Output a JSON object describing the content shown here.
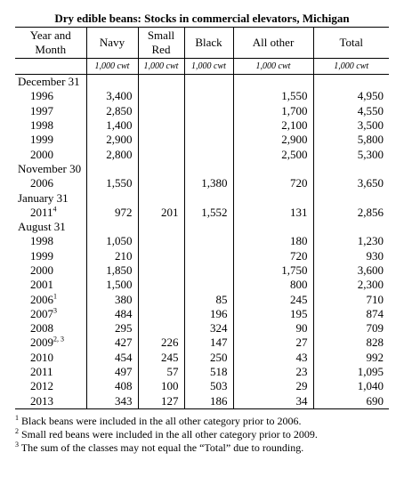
{
  "title": "Dry edible beans: Stocks in commercial elevators, Michigan",
  "columns": [
    {
      "name": "year",
      "label_lines": [
        "Year and",
        "Month"
      ]
    },
    {
      "name": "navy",
      "label_lines": [
        "Navy"
      ]
    },
    {
      "name": "small-red",
      "label_lines": [
        "Small",
        "Red"
      ]
    },
    {
      "name": "black",
      "label_lines": [
        "Black"
      ]
    },
    {
      "name": "all-other",
      "label_lines": [
        "All other"
      ]
    },
    {
      "name": "total",
      "label_lines": [
        "Total"
      ]
    }
  ],
  "units": [
    "1,000 cwt",
    "1,000 cwt",
    "1,000 cwt",
    "1,000 cwt",
    "1,000 cwt"
  ],
  "rows": [
    {
      "type": "section",
      "label": "December 31"
    },
    {
      "type": "data",
      "label": "1996",
      "sup": "",
      "values": [
        "3,400",
        "",
        "",
        "1,550",
        "4,950"
      ]
    },
    {
      "type": "data",
      "label": "1997",
      "sup": "",
      "values": [
        "2,850",
        "",
        "",
        "1,700",
        "4,550"
      ]
    },
    {
      "type": "data",
      "label": "1998",
      "sup": "",
      "values": [
        "1,400",
        "",
        "",
        "2,100",
        "3,500"
      ]
    },
    {
      "type": "data",
      "label": "1999",
      "sup": "",
      "values": [
        "2,900",
        "",
        "",
        "2,900",
        "5,800"
      ]
    },
    {
      "type": "data",
      "label": "2000",
      "sup": "",
      "values": [
        "2,800",
        "",
        "",
        "2,500",
        "5,300"
      ]
    },
    {
      "type": "section",
      "label": "November 30"
    },
    {
      "type": "data",
      "label": "2006",
      "sup": "",
      "values": [
        "1,550",
        "",
        "1,380",
        "720",
        "3,650"
      ]
    },
    {
      "type": "section",
      "label": "January 31"
    },
    {
      "type": "data",
      "label": "2011",
      "sup": "4",
      "values": [
        "972",
        "201",
        "1,552",
        "131",
        "2,856"
      ]
    },
    {
      "type": "section",
      "label": "August 31"
    },
    {
      "type": "data",
      "label": "1998",
      "sup": "",
      "values": [
        "1,050",
        "",
        "",
        "180",
        "1,230"
      ]
    },
    {
      "type": "data",
      "label": "1999",
      "sup": "",
      "values": [
        "210",
        "",
        "",
        "720",
        "930"
      ]
    },
    {
      "type": "data",
      "label": "2000",
      "sup": "",
      "values": [
        "1,850",
        "",
        "",
        "1,750",
        "3,600"
      ]
    },
    {
      "type": "data",
      "label": "2001",
      "sup": "",
      "values": [
        "1,500",
        "",
        "",
        "800",
        "2,300"
      ]
    },
    {
      "type": "data",
      "label": "2006",
      "sup": "1",
      "values": [
        "380",
        "",
        "85",
        "245",
        "710"
      ]
    },
    {
      "type": "data",
      "label": "2007",
      "sup": "3",
      "values": [
        "484",
        "",
        "196",
        "195",
        "874"
      ]
    },
    {
      "type": "data",
      "label": "2008",
      "sup": "",
      "values": [
        "295",
        "",
        "324",
        "90",
        "709"
      ]
    },
    {
      "type": "data",
      "label": "2009",
      "sup": "2, 3",
      "values": [
        "427",
        "226",
        "147",
        "27",
        "828"
      ]
    },
    {
      "type": "data",
      "label": "2010",
      "sup": "",
      "values": [
        "454",
        "245",
        "250",
        "43",
        "992"
      ]
    },
    {
      "type": "data",
      "label": "2011",
      "sup": "",
      "values": [
        "497",
        "57",
        "518",
        "23",
        "1,095"
      ]
    },
    {
      "type": "data",
      "label": "2012",
      "sup": "",
      "values": [
        "408",
        "100",
        "503",
        "29",
        "1,040"
      ]
    },
    {
      "type": "data",
      "label": "2013",
      "sup": "",
      "values": [
        "343",
        "127",
        "186",
        "34",
        "690"
      ]
    }
  ],
  "footnotes": [
    {
      "mark": "1",
      "text": "Black beans were included in the all other category prior to 2006."
    },
    {
      "mark": "2",
      "text": "Small red beans were included in the all other category prior to 2009."
    },
    {
      "mark": "3",
      "text": "The sum of the classes may not equal the “Total” due to rounding."
    }
  ]
}
